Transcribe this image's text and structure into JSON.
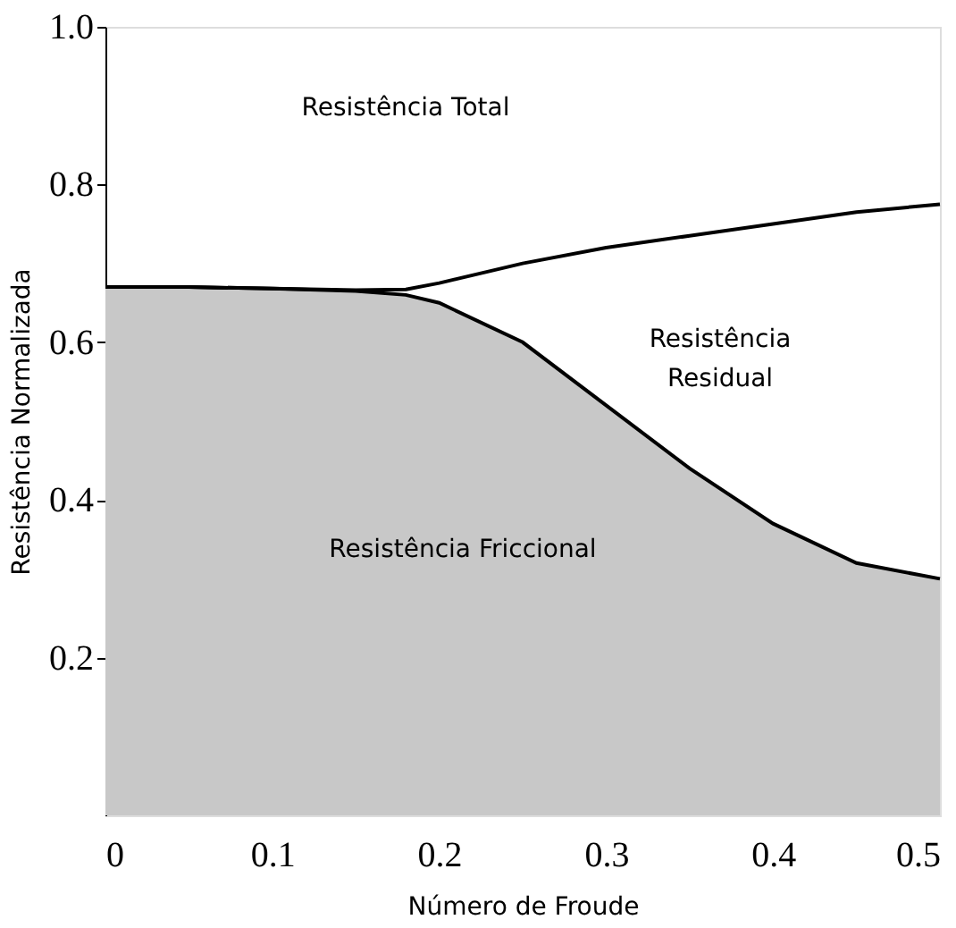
{
  "chart_data": {
    "type": "line",
    "xlabel": "Número de Froude",
    "ylabel": "Resistência Normalizada",
    "x": [
      0,
      0.05,
      0.1,
      0.15,
      0.18,
      0.2,
      0.25,
      0.3,
      0.35,
      0.4,
      0.45,
      0.5
    ],
    "series": [
      {
        "type": "area",
        "color": "#c8c8c8",
        "values": [
          0.67,
          0.67,
          0.668,
          0.665,
          0.66,
          0.65,
          0.6,
          0.52,
          0.44,
          0.37,
          0.32,
          0.3
        ]
      },
      {
        "color": "#000000",
        "values": [
          0.67,
          0.67,
          0.668,
          0.666,
          0.667,
          0.675,
          0.7,
          0.72,
          0.735,
          0.75,
          0.765,
          0.775
        ]
      }
    ],
    "xlim": [
      0,
      0.5
    ],
    "ylim": [
      0,
      1.0
    ],
    "xticks": [
      0,
      0.1,
      0.2,
      0.3,
      0.4,
      0.5
    ],
    "yticks": [
      0.2,
      0.4,
      0.6,
      0.8,
      {
        "value": 1.0,
        "label": "1.0"
      }
    ],
    "annotations": [
      "Resistência Total",
      "Resistência\nResidual",
      "Resistência Friccional"
    ],
    "grid": false,
    "line_style": "solid"
  }
}
